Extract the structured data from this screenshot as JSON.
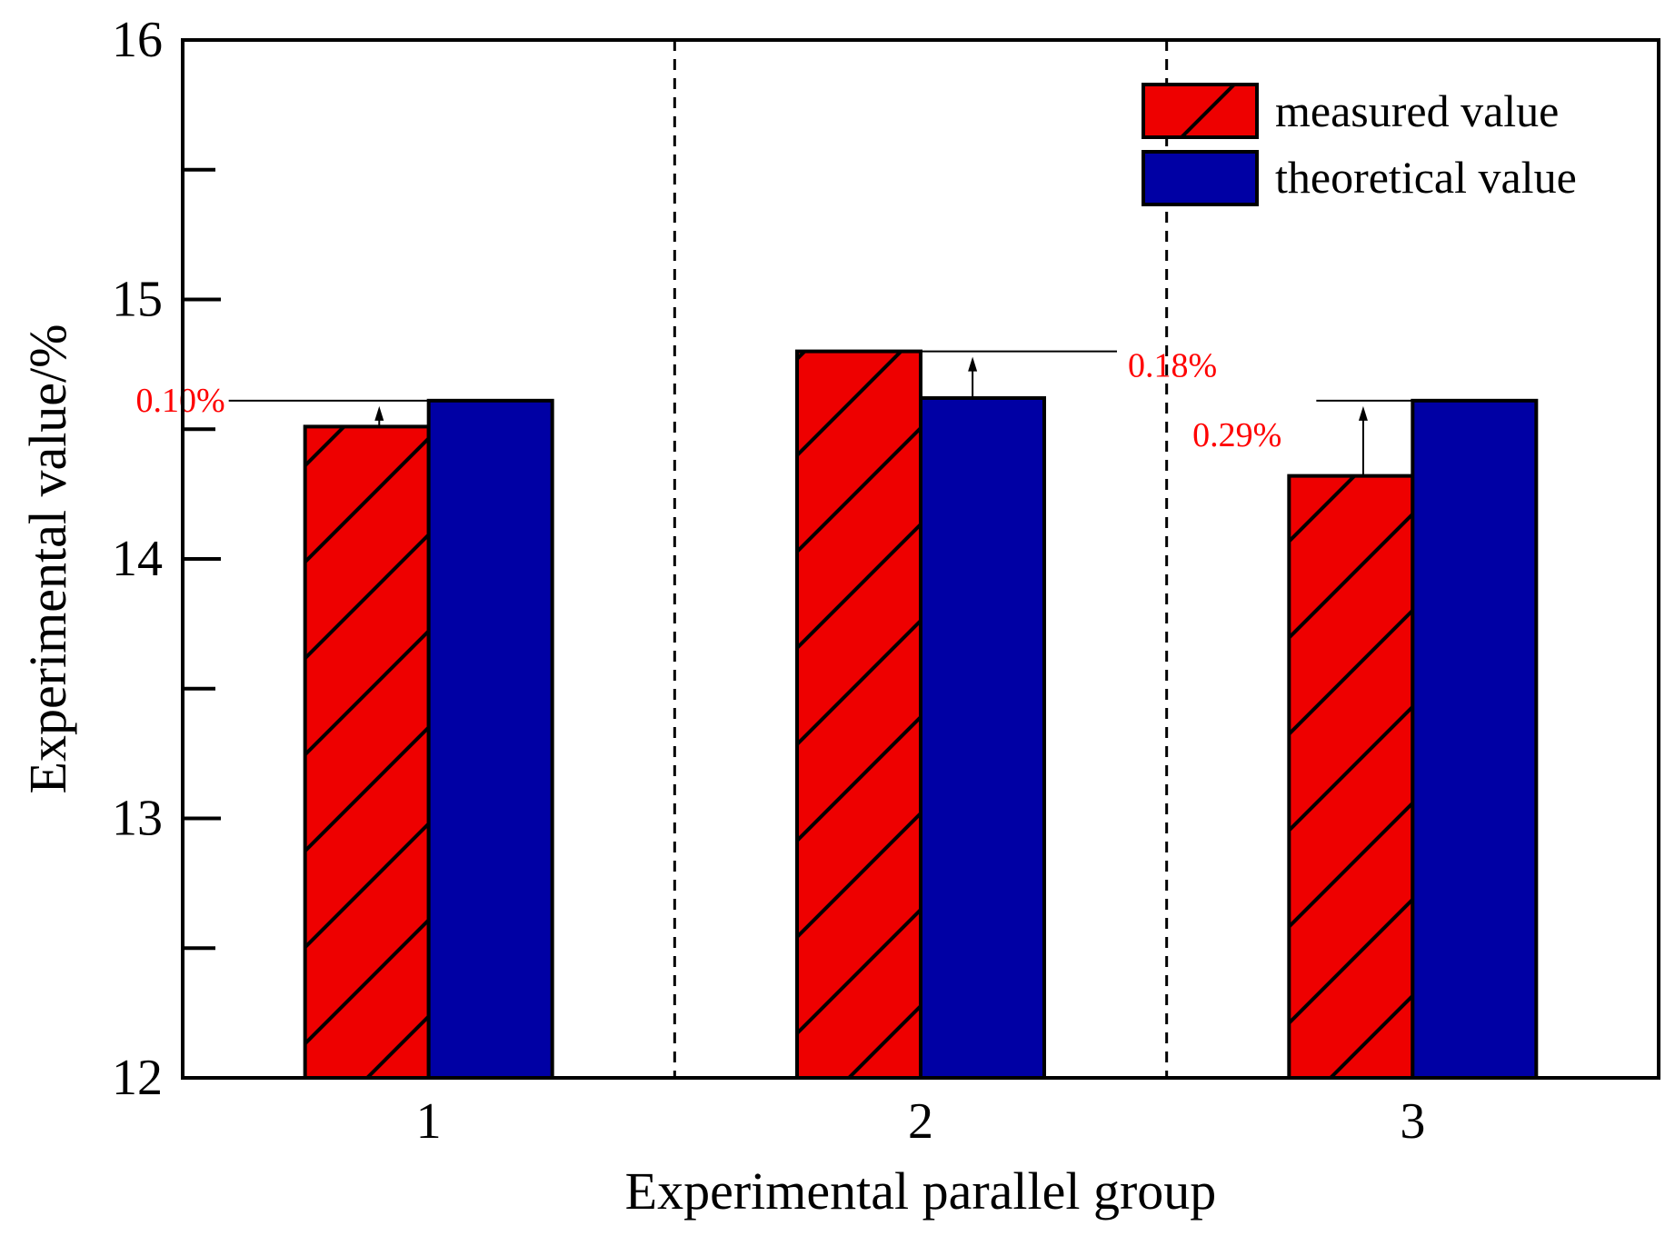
{
  "chart_data": {
    "type": "bar",
    "xlabel": "Experimental parallel group",
    "ylabel": "Experimental value/%",
    "ylim": [
      12,
      16
    ],
    "yticks": [
      12,
      13,
      14,
      15,
      16
    ],
    "categories": [
      "1",
      "2",
      "3"
    ],
    "series": [
      {
        "name": "measured value",
        "values": [
          14.51,
          14.8,
          14.32
        ],
        "color": "#ee0000",
        "pattern": "diagonal-hatch"
      },
      {
        "name": "theoretical value",
        "values": [
          14.61,
          14.62,
          14.61
        ],
        "color": "#0000a4",
        "pattern": "solid"
      }
    ],
    "annotations": [
      "0.10%",
      "0.18%",
      "0.29%"
    ],
    "annotation_color": "#ff0000",
    "legend": {
      "position": "top-right",
      "entries": [
        "measured value",
        "theoretical value"
      ]
    },
    "group_separators": "dashed"
  }
}
